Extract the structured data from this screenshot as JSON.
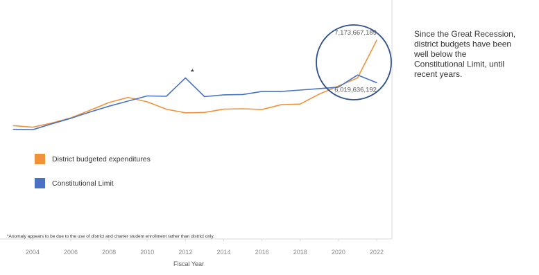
{
  "chart_data": {
    "type": "line",
    "title": "",
    "xlabel": "Fiscal Year",
    "ylabel": "",
    "x": [
      2003,
      2004,
      2005,
      2006,
      2007,
      2008,
      2009,
      2010,
      2011,
      2012,
      2013,
      2014,
      2015,
      2016,
      2017,
      2018,
      2019,
      2020,
      2021,
      2022
    ],
    "xticks": [
      "2004",
      "2006",
      "2008",
      "2010",
      "2012",
      "2014",
      "2016",
      "2018",
      "2020",
      "2022"
    ],
    "xlim": [
      2002.3,
      2022.8
    ],
    "ylim": [
      4500000000,
      7800000000
    ],
    "grid": false,
    "legend_position": "lower-left",
    "series": [
      {
        "name": "District budgeted expenditures",
        "color": "#f0923a",
        "values": [
          4850000000,
          4810000000,
          4920000000,
          5060000000,
          5270000000,
          5480000000,
          5620000000,
          5500000000,
          5300000000,
          5200000000,
          5210000000,
          5300000000,
          5310000000,
          5290000000,
          5420000000,
          5440000000,
          5710000000,
          5930000000,
          6150000000,
          7173667189
        ]
      },
      {
        "name": "Constitutional Limit",
        "color": "#4a72c4",
        "values": [
          4750000000,
          4740000000,
          4900000000,
          5050000000,
          5220000000,
          5380000000,
          5520000000,
          5660000000,
          5650000000,
          6150000000,
          5640000000,
          5690000000,
          5700000000,
          5780000000,
          5780000000,
          5820000000,
          5860000000,
          5900000000,
          6230000000,
          6019636192
        ]
      }
    ],
    "data_labels": [
      {
        "text": "7,173,667,189",
        "series": "District budgeted expenditures",
        "x": 2022
      },
      {
        "text": "6,019,636,192",
        "series": "Constitutional Limit",
        "x": 2022
      }
    ],
    "anomaly_marker": {
      "text": "*",
      "x": 2012
    },
    "footnote": "*Anomaly appears to be due to the use of district and charter student enrollment rather than district only.",
    "annotation_lines": [
      "Since the Great Recession,",
      "district budgets have been",
      "well below the",
      "Constitutional Limit, until",
      "recent years."
    ],
    "callout_circle_color": "#2d4f8a",
    "axis_color": "#d9d9d9",
    "text_color": "#333333"
  }
}
